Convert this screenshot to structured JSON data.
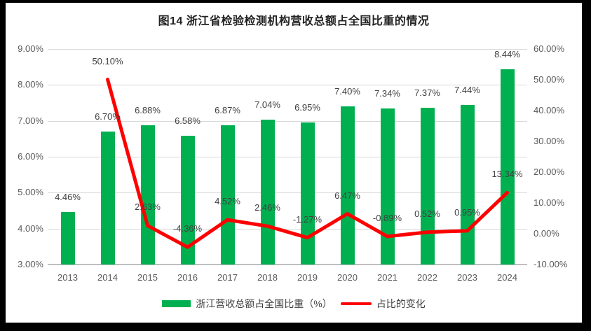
{
  "title": "图14  浙江省检验检测机构营收总额占全国比重的情况",
  "colors": {
    "bar": "#00B050",
    "line": "#FF0000",
    "grid": "#d9d9d9",
    "axis_line": "#bfbfbf",
    "axis_text": "#595959",
    "data_label_text": "#404040",
    "title_text": "#222222",
    "chart_background": "#ffffff",
    "frame_background": "#000000"
  },
  "chart_data": {
    "type": "combo",
    "categories": [
      "2013",
      "2014",
      "2015",
      "2016",
      "2017",
      "2018",
      "2019",
      "2020",
      "2021",
      "2022",
      "2023",
      "2024"
    ],
    "series": [
      {
        "name": "浙江营收总额占全国比重（%）",
        "type": "bar",
        "axis": "left",
        "values": [
          4.46,
          6.7,
          6.88,
          6.58,
          6.87,
          7.04,
          6.95,
          7.4,
          7.34,
          7.37,
          7.44,
          8.44
        ],
        "labels": [
          "4.46%",
          "6.70%",
          "6.88%",
          "6.58%",
          "6.87%",
          "7.04%",
          "6.95%",
          "7.40%",
          "7.34%",
          "7.37%",
          "7.44%",
          "8.44%"
        ]
      },
      {
        "name": "占比的变化",
        "type": "line",
        "axis": "right",
        "values": [
          null,
          50.1,
          2.63,
          -4.36,
          4.52,
          2.46,
          -1.27,
          6.47,
          -0.89,
          0.52,
          0.95,
          13.34
        ],
        "labels": [
          null,
          "50.10%",
          "2.63%",
          "-4.36%",
          "4.52%",
          "2.46%",
          "-1.27%",
          "6.47%",
          "-0.89%",
          "0.52%",
          "0.95%",
          "13.34%"
        ]
      }
    ],
    "left_axis": {
      "min": 3,
      "max": 9,
      "unit": "%",
      "ticks": [
        "9.00%",
        "8.00%",
        "7.00%",
        "6.00%",
        "5.00%",
        "4.00%",
        "3.00%"
      ]
    },
    "right_axis": {
      "min": -10,
      "max": 60,
      "unit": "%",
      "ticks": [
        "60.00%",
        "50.00%",
        "40.00%",
        "30.00%",
        "20.00%",
        "10.00%",
        "0.00%",
        "-10.00%"
      ]
    },
    "grid": true,
    "legend_position": "bottom",
    "title": "图14  浙江省检验检测机构营收总额占全国比重的情况"
  },
  "legend": {
    "items": [
      {
        "label": "浙江营收总额占全国比重（%）",
        "swatch": "bar"
      },
      {
        "label": "占比的变化",
        "swatch": "line"
      }
    ]
  }
}
